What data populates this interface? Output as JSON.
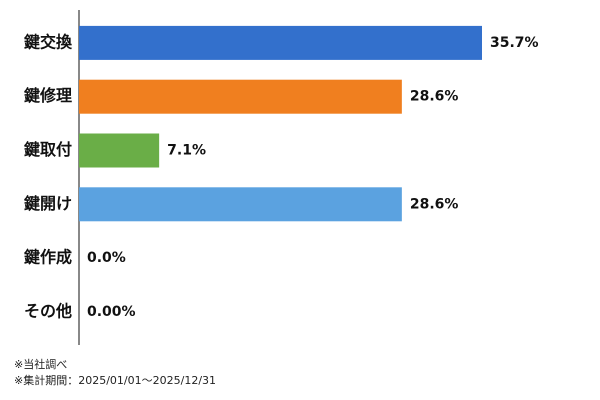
{
  "chart_data": {
    "type": "bar",
    "orientation": "horizontal",
    "categories": [
      "鍵交換",
      "鍵修理",
      "鍵取付",
      "鍵開け",
      "鍵作成",
      "その他"
    ],
    "values": [
      35.7,
      28.6,
      7.1,
      28.6,
      0.0,
      0.0
    ],
    "value_labels": [
      "35.7%",
      "28.6%",
      "7.1%",
      "28.6%",
      "0.0%",
      "0.00%"
    ],
    "colors": [
      "#3370cc",
      "#f07f1f",
      "#6aae47",
      "#5ba2e0",
      "#3370cc",
      "#3370cc"
    ],
    "notes": [
      "※当社調べ",
      "※集計期間：2025/01/01～2025/12/31"
    ]
  }
}
